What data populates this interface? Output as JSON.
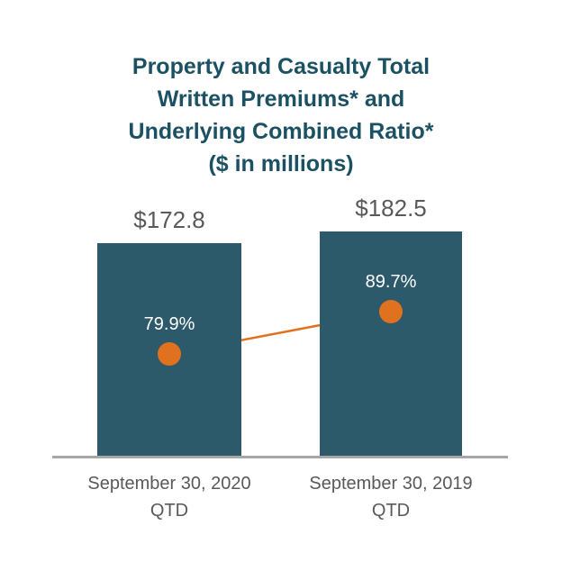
{
  "chart_data": {
    "type": "bar",
    "title": "Property and Casualty Total Written Premiums* and Underlying Combined Ratio* ($ in millions)",
    "title_display": "Property and Casualty Total\nWritten Premiums* and\nUnderlying Combined Ratio*\n($ in millions)",
    "categories": [
      "September 30, 2020 QTD",
      "September 30, 2019 QTD"
    ],
    "x_labels_display": [
      "September 30, 2020\nQTD",
      "September 30, 2019\nQTD"
    ],
    "series": [
      {
        "name": "Total Written Premiums ($ in millions)",
        "type": "bar",
        "values": [
          172.8,
          182.5
        ],
        "labels": [
          "$172.8",
          "$182.5"
        ],
        "color": "#2C5A6B"
      },
      {
        "name": "Underlying Combined Ratio",
        "type": "line",
        "values": [
          79.9,
          89.7
        ],
        "labels": [
          "79.9%",
          "89.7%"
        ],
        "color": "#E0711F"
      }
    ],
    "ylim": [
      0,
      200
    ],
    "y2lim": [
      56,
      130
    ],
    "grid": false,
    "legend": "none",
    "colors": {
      "title": "#1B5162",
      "bar": "#2C5A6B",
      "ratio_point": "#E0711F",
      "value_text": "#58595B",
      "axis_line": "#A7A7A7",
      "ratio_text_on_bar": "#FFFFFF"
    }
  }
}
